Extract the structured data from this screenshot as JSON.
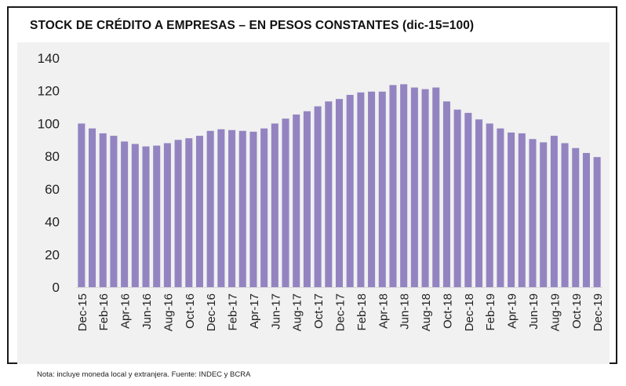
{
  "chart_data": {
    "type": "bar",
    "title": "STOCK DE CRÉDITO A EMPRESAS – EN PESOS CONSTANTES  (dic-15=100)",
    "xlabel": "",
    "ylabel": "",
    "ylim": [
      0,
      140
    ],
    "yticks": [
      0,
      20,
      40,
      60,
      80,
      100,
      120,
      140
    ],
    "ytick_labels": [
      "0",
      "20",
      "40",
      "60",
      "80",
      "100",
      "120",
      "140"
    ],
    "grid": false,
    "legend": "none",
    "bar_color": "#9384c1",
    "categories": [
      "Dec-15",
      "Jan-16",
      "Feb-16",
      "Mar-16",
      "Apr-16",
      "May-16",
      "Jun-16",
      "Jul-16",
      "Aug-16",
      "Sep-16",
      "Oct-16",
      "Nov-16",
      "Dec-16",
      "Jan-17",
      "Feb-17",
      "Mar-17",
      "Apr-17",
      "May-17",
      "Jun-17",
      "Jul-17",
      "Aug-17",
      "Sep-17",
      "Oct-17",
      "Nov-17",
      "Dec-17",
      "Jan-18",
      "Feb-18",
      "Mar-18",
      "Apr-18",
      "May-18",
      "Jun-18",
      "Jul-18",
      "Aug-18",
      "Sep-18",
      "Oct-18",
      "Nov-18",
      "Dec-18",
      "Jan-19",
      "Feb-19",
      "Mar-19",
      "Apr-19",
      "May-19",
      "Jun-19",
      "Jul-19",
      "Aug-19",
      "Sep-19",
      "Oct-19",
      "Nov-19",
      "Dec-19"
    ],
    "xtick_labels": [
      "Dec-15",
      "Feb-16",
      "Apr-16",
      "Jun-16",
      "Aug-16",
      "Oct-16",
      "Dec-16",
      "Feb-17",
      "Apr-17",
      "Jun-17",
      "Aug-17",
      "Oct-17",
      "Dec-17",
      "Feb-18",
      "Apr-18",
      "Jun-18",
      "Aug-18",
      "Oct-18",
      "Dec-18",
      "Feb-19",
      "Apr-19",
      "Jun-19",
      "Aug-19",
      "Oct-19",
      "Dec-19"
    ],
    "values": [
      100,
      97,
      94,
      92.5,
      89,
      87.5,
      86,
      86.5,
      88,
      90,
      91,
      92.5,
      95.5,
      96.5,
      96,
      95.5,
      95,
      97,
      100,
      103,
      105.5,
      107.5,
      110.5,
      113.5,
      115,
      117.5,
      119,
      119.5,
      119.5,
      123.5,
      124,
      122,
      121,
      122,
      113.5,
      108.5,
      106.5,
      102.5,
      100,
      97,
      94.5,
      94,
      90.5,
      88.5,
      92.5,
      88,
      85,
      82,
      79.5
    ]
  },
  "footnote": "Nota: incluye moneda local y extranjera. Fuente: INDEC y BCRA"
}
